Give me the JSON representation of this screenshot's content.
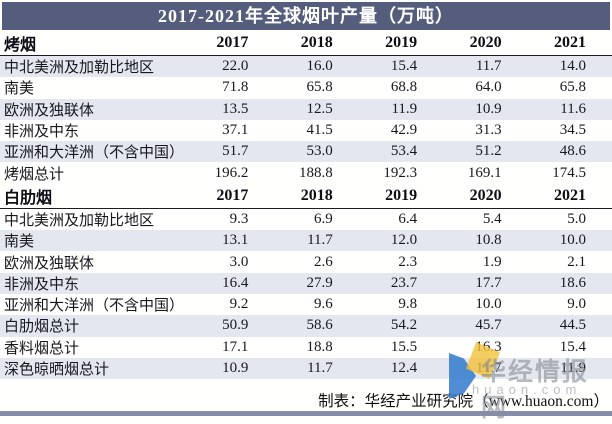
{
  "title": "2017-2021年全球烟叶产量（万吨）",
  "footer": {
    "credit": "制表：华经产业研究院（www.huaon.com）"
  },
  "watermark": {
    "brand": "华经情报网",
    "domain": "huaon.com"
  },
  "colors": {
    "title_bar": "#545e7c",
    "row_stripe": "#e4e7ef",
    "bottom_bar": "#858dad",
    "watermark_blue": "#3179cd",
    "watermark_yellow": "#f2c23a"
  },
  "chart_data": {
    "type": "table",
    "title": "2017-2021年全球烟叶产量（万吨）",
    "unit": "万吨",
    "years": [
      "2017",
      "2018",
      "2019",
      "2020",
      "2021"
    ],
    "sections": [
      {
        "header": "烤烟",
        "rows": [
          {
            "label": "中北美洲及加勒比地区",
            "values": [
              22.0,
              16.0,
              15.4,
              11.7,
              14.0
            ]
          },
          {
            "label": "南美",
            "values": [
              71.8,
              65.8,
              68.8,
              64.0,
              65.8
            ]
          },
          {
            "label": "欧洲及独联体",
            "values": [
              13.5,
              12.5,
              11.9,
              10.9,
              11.6
            ]
          },
          {
            "label": "非洲及中东",
            "values": [
              37.1,
              41.5,
              42.9,
              31.3,
              34.5
            ]
          },
          {
            "label": "亚洲和大洋洲（不含中国）",
            "values": [
              51.7,
              53.0,
              53.4,
              51.2,
              48.6
            ]
          },
          {
            "label": "烤烟总计",
            "values": [
              196.2,
              188.8,
              192.3,
              169.1,
              174.5
            ]
          }
        ]
      },
      {
        "header": "白肋烟",
        "rows": [
          {
            "label": "中北美洲及加勒比地区",
            "values": [
              9.3,
              6.9,
              6.4,
              5.4,
              5.0
            ]
          },
          {
            "label": "南美",
            "values": [
              13.1,
              11.7,
              12.0,
              10.8,
              10.0
            ]
          },
          {
            "label": "欧洲及独联体",
            "values": [
              3.0,
              2.6,
              2.3,
              1.9,
              2.1
            ]
          },
          {
            "label": "非洲及中东",
            "values": [
              16.4,
              27.9,
              23.7,
              17.7,
              18.6
            ]
          },
          {
            "label": "亚洲和大洋洲（不含中国）",
            "values": [
              9.2,
              9.6,
              9.8,
              10.0,
              9.0
            ]
          },
          {
            "label": "白肋烟总计",
            "values": [
              50.9,
              58.6,
              54.2,
              45.7,
              44.5
            ]
          },
          {
            "label": "香料烟总计",
            "values": [
              17.1,
              18.8,
              15.5,
              16.3,
              15.4
            ]
          },
          {
            "label": "深色晾晒烟总计",
            "values": [
              10.9,
              11.7,
              12.4,
              11.7,
              11.9
            ]
          }
        ]
      }
    ]
  }
}
